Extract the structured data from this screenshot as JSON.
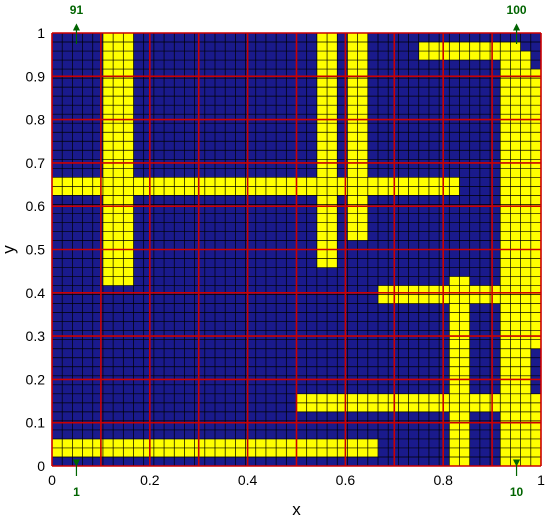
{
  "colors": {
    "background": "#1a1a8c",
    "filled_cell": "#ffff00",
    "cell_border": "#000000",
    "element_grid": "#cc0000",
    "annotation": "#006400"
  },
  "chart_data": {
    "type": "heatmap",
    "title": "",
    "xlabel": "x",
    "ylabel": "y",
    "xlim": [
      0,
      1
    ],
    "ylim": [
      0,
      1
    ],
    "xticks": [
      "0",
      "0.2",
      "0.4",
      "0.6",
      "0.8",
      "1"
    ],
    "yticks": [
      "0",
      "0.1",
      "0.2",
      "0.3",
      "0.4",
      "0.5",
      "0.6",
      "0.7",
      "0.8",
      "0.9",
      "1"
    ],
    "fine_grid": [
      48,
      48
    ],
    "element_grid": [
      10,
      10
    ],
    "filled_regions": [
      {
        "x": [
          0.0,
          0.667
        ],
        "y": [
          0.021,
          0.062
        ]
      },
      {
        "x": [
          0.5,
          1.0
        ],
        "y": [
          0.125,
          0.167
        ]
      },
      {
        "x": [
          0.667,
          0.958
        ],
        "y": [
          0.375,
          0.417
        ]
      },
      {
        "x": [
          0.0,
          0.833
        ],
        "y": [
          0.625,
          0.667
        ]
      },
      {
        "x": [
          0.75,
          0.958
        ],
        "y": [
          0.938,
          0.979
        ]
      },
      {
        "x": [
          0.104,
          0.167
        ],
        "y": [
          0.417,
          1.0
        ]
      },
      {
        "x": [
          0.542,
          0.583
        ],
        "y": [
          0.458,
          1.0
        ]
      },
      {
        "x": [
          0.604,
          0.646
        ],
        "y": [
          0.521,
          1.0
        ]
      },
      {
        "x": [
          0.812,
          0.854
        ],
        "y": [
          0.0,
          0.438
        ]
      },
      {
        "x": [
          0.917,
          0.979
        ],
        "y": [
          0.0,
          0.958
        ]
      },
      {
        "x": [
          0.958,
          1.0
        ],
        "y": [
          0.271,
          0.917
        ]
      },
      {
        "x": [
          0.938,
          1.0
        ],
        "y": [
          0.0,
          0.167
        ]
      }
    ],
    "annotations": [
      {
        "text": "91",
        "x": 0.05,
        "y": 1.0
      },
      {
        "text": "100",
        "x": 0.95,
        "y": 1.0
      },
      {
        "text": "1",
        "x": 0.05,
        "y": 0.0
      },
      {
        "text": "10",
        "x": 0.95,
        "y": 0.0
      }
    ]
  }
}
